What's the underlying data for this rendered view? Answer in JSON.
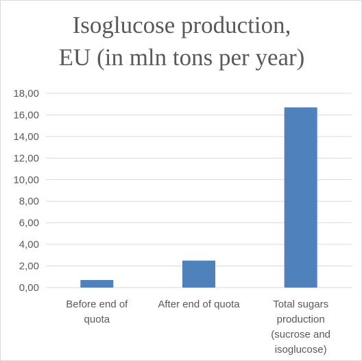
{
  "chart_data": {
    "type": "bar",
    "title_lines": [
      "Isoglucose production,",
      "EU (in mln tons per year)"
    ],
    "categories": [
      [
        "Before end of",
        "quota"
      ],
      [
        "After end of quota"
      ],
      [
        "Total sugars",
        "production",
        "(sucrose and",
        "isoglucose)"
      ]
    ],
    "values": [
      0.7,
      2.5,
      16.7
    ],
    "ylim": [
      0,
      18
    ],
    "yticks": [
      "0,00",
      "2,00",
      "4,00",
      "6,00",
      "8,00",
      "10,00",
      "12,00",
      "14,00",
      "16,00",
      "18,00"
    ],
    "grid": true,
    "bar_color": "#4f81bd",
    "grid_color": "#d9d9d9",
    "xlabel": "",
    "ylabel": ""
  }
}
